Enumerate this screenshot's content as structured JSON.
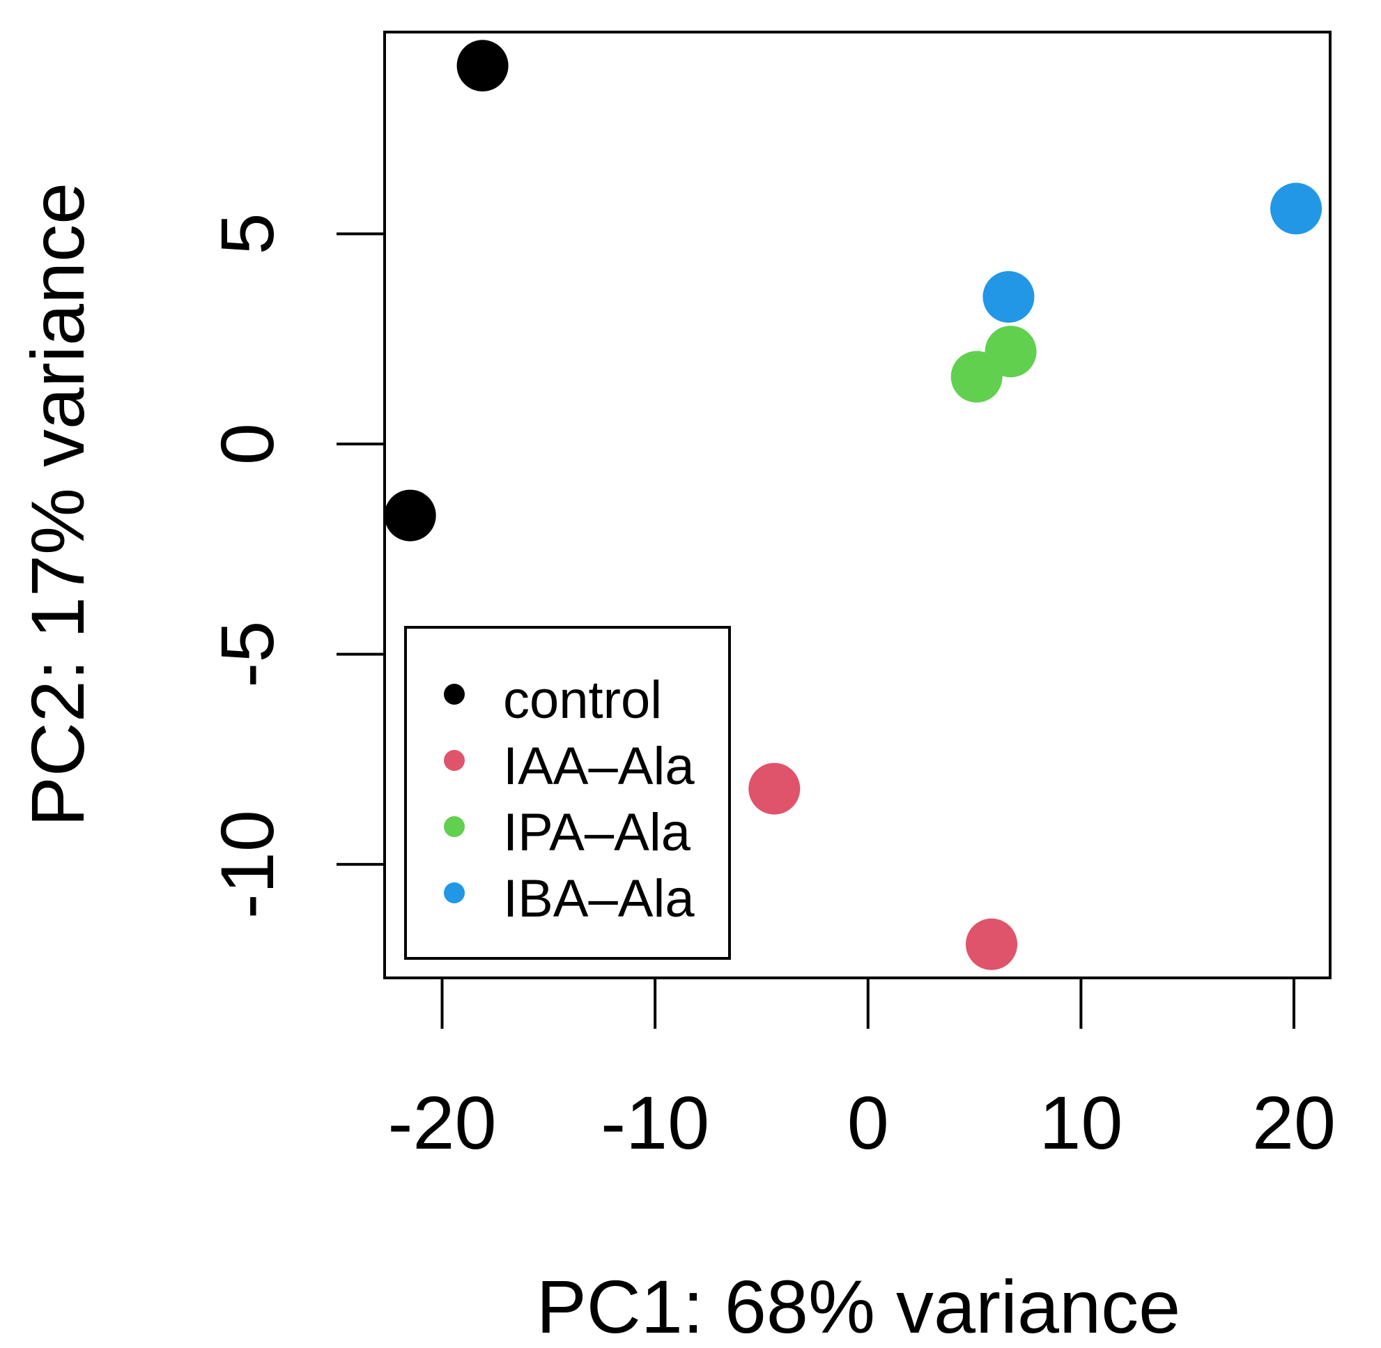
{
  "chart_data": {
    "type": "scatter",
    "title": "",
    "xlabel": "PC1: 68% variance",
    "ylabel": "PC2: 17% variance",
    "xlim": [
      -22.7,
      21.7
    ],
    "ylim": [
      -12.7,
      9.8
    ],
    "xticks": [
      -20,
      -10,
      0,
      10,
      20
    ],
    "xtick_labels": [
      "-20",
      "-10",
      "0",
      "10",
      "20"
    ],
    "yticks": [
      -10,
      -5,
      0,
      5
    ],
    "ytick_labels": [
      "-10",
      "-5",
      "0",
      "5"
    ],
    "grid": false,
    "legend_position": "bottom-left",
    "series": [
      {
        "name": "control",
        "color": "#000000",
        "points": [
          [
            -18.1,
            9.0
          ],
          [
            -21.5,
            -1.7
          ]
        ]
      },
      {
        "name": "IAA–Ala",
        "color": "#DF536B",
        "points": [
          [
            -4.4,
            -8.2
          ],
          [
            5.8,
            -11.9
          ]
        ]
      },
      {
        "name": "IPA–Ala",
        "color": "#61D04F",
        "points": [
          [
            6.7,
            2.2
          ],
          [
            5.1,
            1.6
          ]
        ]
      },
      {
        "name": "IBA–Ala",
        "color": "#2297E6",
        "points": [
          [
            20.1,
            5.6
          ],
          [
            6.6,
            3.5
          ]
        ]
      }
    ]
  }
}
